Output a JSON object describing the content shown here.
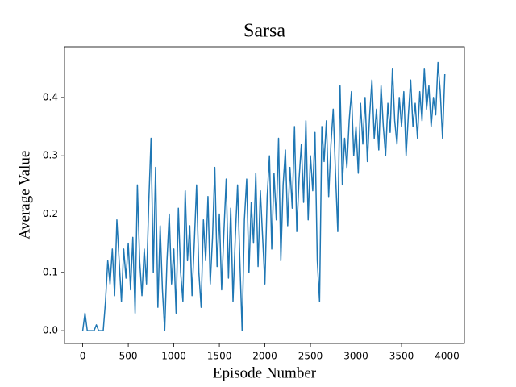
{
  "chart_data": {
    "type": "line",
    "title": "Sarsa",
    "x_label": "Episode Number",
    "y_label": "Average Value",
    "x": [
      0,
      25,
      50,
      75,
      100,
      125,
      150,
      175,
      200,
      225,
      250,
      275,
      300,
      325,
      350,
      375,
      400,
      425,
      450,
      475,
      500,
      525,
      550,
      575,
      600,
      625,
      650,
      675,
      700,
      725,
      750,
      775,
      800,
      825,
      850,
      875,
      900,
      925,
      950,
      975,
      1000,
      1025,
      1050,
      1075,
      1100,
      1125,
      1150,
      1175,
      1200,
      1225,
      1250,
      1275,
      1300,
      1325,
      1350,
      1375,
      1400,
      1425,
      1450,
      1475,
      1500,
      1525,
      1550,
      1575,
      1600,
      1625,
      1650,
      1675,
      1700,
      1725,
      1750,
      1775,
      1800,
      1825,
      1850,
      1875,
      1900,
      1925,
      1950,
      1975,
      2000,
      2025,
      2050,
      2075,
      2100,
      2125,
      2150,
      2175,
      2200,
      2225,
      2250,
      2275,
      2300,
      2325,
      2350,
      2375,
      2400,
      2425,
      2450,
      2475,
      2500,
      2525,
      2550,
      2575,
      2600,
      2625,
      2650,
      2675,
      2700,
      2725,
      2750,
      2775,
      2800,
      2825,
      2850,
      2875,
      2900,
      2925,
      2950,
      2975,
      3000,
      3025,
      3050,
      3075,
      3100,
      3125,
      3150,
      3175,
      3200,
      3225,
      3250,
      3275,
      3300,
      3325,
      3350,
      3375,
      3400,
      3425,
      3450,
      3475,
      3500,
      3525,
      3550,
      3575,
      3600,
      3625,
      3650,
      3675,
      3700,
      3725,
      3750,
      3775,
      3800,
      3825,
      3850,
      3875,
      3900,
      3925,
      3950,
      3975
    ],
    "series": [
      {
        "color": "#1f77b4",
        "values": [
          0.0,
          0.03,
          0.0,
          0.0,
          0.0,
          0.0,
          0.01,
          0.0,
          0.0,
          0.0,
          0.05,
          0.12,
          0.08,
          0.14,
          0.06,
          0.19,
          0.12,
          0.05,
          0.14,
          0.09,
          0.15,
          0.07,
          0.16,
          0.03,
          0.25,
          0.12,
          0.06,
          0.14,
          0.08,
          0.22,
          0.33,
          0.1,
          0.28,
          0.04,
          0.18,
          0.07,
          0.0,
          0.12,
          0.2,
          0.08,
          0.14,
          0.03,
          0.21,
          0.1,
          0.05,
          0.24,
          0.12,
          0.18,
          0.06,
          0.15,
          0.25,
          0.1,
          0.04,
          0.19,
          0.12,
          0.23,
          0.08,
          0.16,
          0.28,
          0.11,
          0.2,
          0.07,
          0.17,
          0.26,
          0.09,
          0.21,
          0.05,
          0.16,
          0.25,
          0.12,
          0.0,
          0.19,
          0.26,
          0.1,
          0.22,
          0.15,
          0.27,
          0.11,
          0.24,
          0.16,
          0.08,
          0.23,
          0.3,
          0.14,
          0.27,
          0.19,
          0.33,
          0.12,
          0.25,
          0.31,
          0.18,
          0.28,
          0.21,
          0.35,
          0.17,
          0.26,
          0.32,
          0.22,
          0.36,
          0.19,
          0.3,
          0.24,
          0.34,
          0.12,
          0.05,
          0.35,
          0.29,
          0.36,
          0.23,
          0.32,
          0.38,
          0.27,
          0.17,
          0.42,
          0.25,
          0.33,
          0.28,
          0.36,
          0.41,
          0.3,
          0.35,
          0.27,
          0.39,
          0.32,
          0.4,
          0.29,
          0.37,
          0.43,
          0.33,
          0.38,
          0.31,
          0.42,
          0.35,
          0.3,
          0.39,
          0.34,
          0.45,
          0.36,
          0.32,
          0.4,
          0.35,
          0.41,
          0.3,
          0.37,
          0.43,
          0.35,
          0.39,
          0.33,
          0.41,
          0.36,
          0.45,
          0.38,
          0.42,
          0.35,
          0.4,
          0.37,
          0.46,
          0.41,
          0.33,
          0.44
        ]
      }
    ],
    "xlim": [
      -200,
      4190
    ],
    "ylim": [
      -0.022,
      0.487
    ],
    "xticks": [
      0,
      500,
      1000,
      1500,
      2000,
      2500,
      3000,
      3500,
      4000
    ],
    "yticks": [
      {
        "value": 0,
        "label": "0.0"
      },
      0.1,
      0.2,
      0.3,
      0.4
    ]
  }
}
